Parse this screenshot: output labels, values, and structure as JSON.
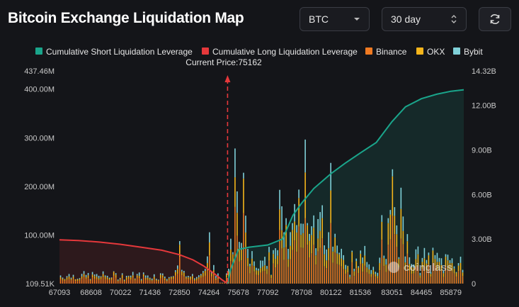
{
  "header": {
    "title": "Bitcoin Exchange Liquidation Map",
    "coin_select": "BTC",
    "range_select": "30 day",
    "refresh_icon": "refresh-icon"
  },
  "colors": {
    "short_cum": "#1aa58b",
    "long_cum": "#e5383b",
    "binance": "#f07a22",
    "okx": "#f5b51b",
    "bybit": "#7fd0d8",
    "bg": "#141519"
  },
  "chart_data": {
    "type": "bar",
    "title": "",
    "legend": [
      {
        "name": "Cumulative Short Liquidation Leverage",
        "color": "#1aa58b"
      },
      {
        "name": "Cumulative Long Liquidation Leverage",
        "color": "#e5383b"
      },
      {
        "name": "Binance",
        "color": "#f07a22"
      },
      {
        "name": "OKX",
        "color": "#f5b51b"
      },
      {
        "name": "Bybit",
        "color": "#7fd0d8"
      }
    ],
    "legend_position": "top",
    "current_price_label": "Current Price:75162",
    "current_price": 75162,
    "x_ticks": [
      "67093",
      "68608",
      "70022",
      "71436",
      "72850",
      "74264",
      "75678",
      "77092",
      "78708",
      "80122",
      "81536",
      "83051",
      "84465",
      "85879"
    ],
    "x_range": [
      67093,
      86500
    ],
    "y_left": {
      "ticks": [
        "109.51K",
        "100.00M",
        "200.00M",
        "300.00M",
        "400.00M",
        "437.46M"
      ],
      "range": [
        0,
        437.46
      ],
      "unit": "M"
    },
    "y_right": {
      "ticks": [
        "0",
        "3.00B",
        "6.00B",
        "9.00B",
        "12.00B",
        "14.32B"
      ],
      "range": [
        0,
        14.32
      ],
      "unit": "B"
    },
    "cumulative_long": {
      "x": [
        67093,
        68000,
        69000,
        70000,
        71000,
        72000,
        72850,
        73500,
        74000,
        74500,
        74900,
        75162
      ],
      "y": [
        2.95,
        2.9,
        2.8,
        2.65,
        2.45,
        2.25,
        1.95,
        1.6,
        1.2,
        0.7,
        0.25,
        0.0
      ]
    },
    "cumulative_short": {
      "x": [
        75162,
        75300,
        75678,
        76200,
        77092,
        77800,
        78300,
        78708,
        79300,
        80122,
        80800,
        81536,
        82300,
        83051,
        83700,
        84465,
        85200,
        85879,
        86500
      ],
      "y": [
        0.0,
        0.9,
        2.3,
        2.45,
        2.6,
        3.0,
        4.6,
        5.4,
        6.4,
        7.4,
        8.1,
        8.8,
        9.5,
        10.9,
        11.9,
        12.45,
        12.75,
        12.95,
        13.05
      ]
    },
    "peak_bars_millions": [
      {
        "x": 72850,
        "value": 105
      },
      {
        "x": 74264,
        "value": 170
      },
      {
        "x": 75550,
        "value": 395
      },
      {
        "x": 75950,
        "value": 345
      },
      {
        "x": 78550,
        "value": 310
      },
      {
        "x": 78900,
        "value": 395
      },
      {
        "x": 80122,
        "value": 300
      },
      {
        "x": 83051,
        "value": 370
      },
      {
        "x": 83500,
        "value": 260
      }
    ]
  },
  "watermark": "coinglass"
}
